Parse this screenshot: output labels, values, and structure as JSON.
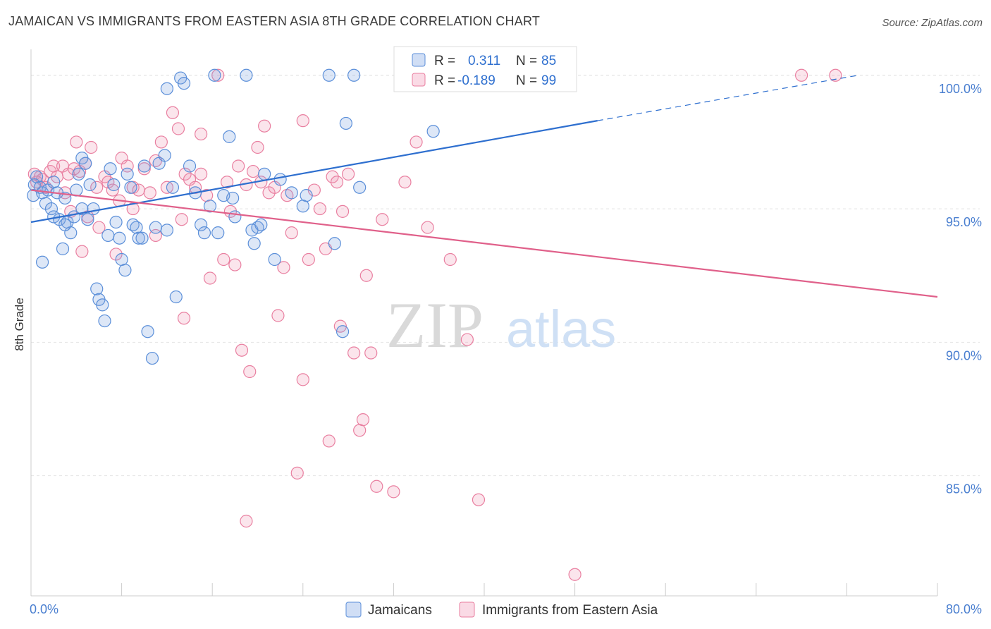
{
  "title": "JAMAICAN VS IMMIGRANTS FROM EASTERN ASIA 8TH GRADE CORRELATION CHART",
  "source": "Source: ZipAtlas.com",
  "watermark": {
    "zip": "ZIP",
    "atlas": "atlas"
  },
  "colors": {
    "blue": "#5b8fd9",
    "blue_line": "#2e6fcf",
    "pink": "#e97fa0",
    "pink_line": "#e0608a",
    "blue_fill": "rgba(120,160,225,0.25)",
    "pink_fill": "rgba(240,150,180,0.25)",
    "axis_text": "#4a7fd0"
  },
  "legend_top": {
    "rows": [
      {
        "r_label": "R =",
        "r_value": "0.311",
        "n_label": "N =",
        "n_value": "85"
      },
      {
        "r_label": "R =",
        "r_value": "-0.189",
        "n_label": "N =",
        "n_value": "99"
      }
    ]
  },
  "legend_bottom": [
    "Jamaicans",
    "Immigrants from Eastern Asia"
  ],
  "chart_data": {
    "type": "scatter",
    "xlabel": "",
    "ylabel": "8th Grade",
    "xlim": [
      0,
      80
    ],
    "ylim": [
      80.5,
      101.5
    ],
    "x_tick_labels": [
      "0.0%",
      "80.0%"
    ],
    "y_ticks": [
      85,
      90,
      95,
      100
    ],
    "y_tick_labels": [
      "85.0%",
      "90.0%",
      "95.0%",
      "100.0%"
    ],
    "grid": true,
    "series": [
      {
        "name": "Jamaicans",
        "r": 0.311,
        "n": 85,
        "trend": {
          "x0": 0,
          "y0": 94.5,
          "x1": 50,
          "y1": 98.3,
          "dash_to_x": 73,
          "dash_to_y": 100
        },
        "points": [
          [
            0.3,
            95.9
          ],
          [
            0.5,
            96.2
          ],
          [
            0.8,
            95.8
          ],
          [
            1.0,
            95.6
          ],
          [
            1.3,
            95.2
          ],
          [
            1.5,
            95.7
          ],
          [
            1.8,
            95.0
          ],
          [
            2.0,
            94.7
          ],
          [
            2.3,
            95.6
          ],
          [
            2.5,
            94.6
          ],
          [
            2.8,
            93.5
          ],
          [
            3.0,
            95.4
          ],
          [
            3.2,
            94.5
          ],
          [
            3.5,
            94.1
          ],
          [
            3.8,
            94.7
          ],
          [
            4.0,
            95.7
          ],
          [
            4.2,
            96.3
          ],
          [
            4.5,
            96.9
          ],
          [
            4.8,
            96.7
          ],
          [
            5.0,
            94.6
          ],
          [
            5.2,
            95.9
          ],
          [
            5.5,
            95.0
          ],
          [
            5.8,
            92.0
          ],
          [
            6.0,
            91.6
          ],
          [
            6.3,
            91.4
          ],
          [
            6.5,
            90.8
          ],
          [
            7.0,
            96.5
          ],
          [
            7.3,
            95.9
          ],
          [
            7.5,
            94.5
          ],
          [
            7.8,
            93.9
          ],
          [
            8.0,
            93.1
          ],
          [
            8.3,
            92.7
          ],
          [
            8.5,
            96.3
          ],
          [
            8.8,
            95.8
          ],
          [
            9.0,
            94.4
          ],
          [
            9.3,
            94.3
          ],
          [
            9.5,
            93.9
          ],
          [
            10.0,
            96.6
          ],
          [
            10.3,
            90.4
          ],
          [
            10.7,
            89.4
          ],
          [
            11.0,
            94.3
          ],
          [
            11.3,
            96.7
          ],
          [
            11.8,
            97.0
          ],
          [
            12.0,
            99.5
          ],
          [
            12.5,
            95.8
          ],
          [
            12.8,
            91.7
          ],
          [
            13.2,
            99.9
          ],
          [
            13.5,
            99.7
          ],
          [
            14.0,
            96.6
          ],
          [
            14.5,
            95.6
          ],
          [
            15.0,
            94.4
          ],
          [
            15.3,
            94.1
          ],
          [
            15.8,
            95.1
          ],
          [
            16.2,
            100.0
          ],
          [
            17.0,
            95.5
          ],
          [
            17.5,
            97.7
          ],
          [
            17.8,
            95.4
          ],
          [
            18.0,
            94.7
          ],
          [
            19.0,
            100.0
          ],
          [
            19.5,
            94.2
          ],
          [
            19.7,
            93.7
          ],
          [
            20.0,
            94.3
          ],
          [
            20.3,
            94.4
          ],
          [
            20.6,
            96.3
          ],
          [
            21.5,
            93.1
          ],
          [
            23.0,
            95.6
          ],
          [
            24.0,
            95.1
          ],
          [
            24.3,
            95.5
          ],
          [
            26.3,
            100.0
          ],
          [
            26.8,
            93.7
          ],
          [
            27.5,
            90.4
          ],
          [
            27.8,
            98.2
          ],
          [
            28.5,
            100.0
          ],
          [
            29.0,
            95.8
          ],
          [
            35.5,
            97.9
          ],
          [
            1.0,
            93.0
          ],
          [
            2.0,
            96.0
          ],
          [
            3.0,
            94.4
          ],
          [
            4.5,
            95.0
          ],
          [
            6.8,
            94.0
          ],
          [
            9.8,
            93.9
          ],
          [
            12.0,
            94.2
          ],
          [
            16.5,
            94.1
          ],
          [
            22.0,
            96.1
          ],
          [
            0.2,
            95.5
          ]
        ]
      },
      {
        "name": "Immigrants from Eastern Asia",
        "r": -0.189,
        "n": 99,
        "trend": {
          "x0": 0,
          "y0": 95.7,
          "x1": 80,
          "y1": 91.7
        },
        "points": [
          [
            0.3,
            96.3
          ],
          [
            0.5,
            96.0
          ],
          [
            0.8,
            96.2
          ],
          [
            1.0,
            96.1
          ],
          [
            1.3,
            95.8
          ],
          [
            1.7,
            96.4
          ],
          [
            2.0,
            96.6
          ],
          [
            2.3,
            96.2
          ],
          [
            2.8,
            96.6
          ],
          [
            3.0,
            95.6
          ],
          [
            3.3,
            96.3
          ],
          [
            3.5,
            94.9
          ],
          [
            4.0,
            97.5
          ],
          [
            4.3,
            96.4
          ],
          [
            4.5,
            93.4
          ],
          [
            4.8,
            96.7
          ],
          [
            5.0,
            94.7
          ],
          [
            5.3,
            97.3
          ],
          [
            5.8,
            95.8
          ],
          [
            6.0,
            94.3
          ],
          [
            6.5,
            96.2
          ],
          [
            6.8,
            96.0
          ],
          [
            7.2,
            95.7
          ],
          [
            7.5,
            93.3
          ],
          [
            7.8,
            95.3
          ],
          [
            8.0,
            96.9
          ],
          [
            8.5,
            96.6
          ],
          [
            9.0,
            95.8
          ],
          [
            9.5,
            95.7
          ],
          [
            10.0,
            96.5
          ],
          [
            10.5,
            95.6
          ],
          [
            11.0,
            94.0
          ],
          [
            11.5,
            97.5
          ],
          [
            12.0,
            95.8
          ],
          [
            12.5,
            98.6
          ],
          [
            13.0,
            98.0
          ],
          [
            13.3,
            94.6
          ],
          [
            13.6,
            96.3
          ],
          [
            14.0,
            96.1
          ],
          [
            14.5,
            95.8
          ],
          [
            15.0,
            97.8
          ],
          [
            15.5,
            95.5
          ],
          [
            15.8,
            92.4
          ],
          [
            16.5,
            100.0
          ],
          [
            17.0,
            93.1
          ],
          [
            17.3,
            96.0
          ],
          [
            17.6,
            94.9
          ],
          [
            18.0,
            92.9
          ],
          [
            18.3,
            96.6
          ],
          [
            18.6,
            89.7
          ],
          [
            19.0,
            95.9
          ],
          [
            19.3,
            88.9
          ],
          [
            19.6,
            96.4
          ],
          [
            20.0,
            97.3
          ],
          [
            20.3,
            96.0
          ],
          [
            20.6,
            98.1
          ],
          [
            21.0,
            95.6
          ],
          [
            21.5,
            95.8
          ],
          [
            21.8,
            91.0
          ],
          [
            22.3,
            92.8
          ],
          [
            22.6,
            95.5
          ],
          [
            23.0,
            94.1
          ],
          [
            23.5,
            85.1
          ],
          [
            24.0,
            98.3
          ],
          [
            24.5,
            93.1
          ],
          [
            25.0,
            95.7
          ],
          [
            25.5,
            95.0
          ],
          [
            26.0,
            93.5
          ],
          [
            26.3,
            86.3
          ],
          [
            26.6,
            96.2
          ],
          [
            27.0,
            96.0
          ],
          [
            27.3,
            90.6
          ],
          [
            28.0,
            96.3
          ],
          [
            28.5,
            89.6
          ],
          [
            29.0,
            86.7
          ],
          [
            29.3,
            87.1
          ],
          [
            29.6,
            92.5
          ],
          [
            30.0,
            89.6
          ],
          [
            30.5,
            84.6
          ],
          [
            31.0,
            94.6
          ],
          [
            32.0,
            84.4
          ],
          [
            34.0,
            97.5
          ],
          [
            35.0,
            94.3
          ],
          [
            37.0,
            93.1
          ],
          [
            38.5,
            90.1
          ],
          [
            39.5,
            84.1
          ],
          [
            42.0,
            100.0
          ],
          [
            48.0,
            81.3
          ],
          [
            68.0,
            100.0
          ],
          [
            71.0,
            100.0
          ],
          [
            13.5,
            90.9
          ],
          [
            19.0,
            83.3
          ],
          [
            24.0,
            88.6
          ],
          [
            27.5,
            94.9
          ],
          [
            33.0,
            96.0
          ],
          [
            15.0,
            96.3
          ],
          [
            11.0,
            96.8
          ],
          [
            9.0,
            95.0
          ],
          [
            3.8,
            96.5
          ]
        ]
      }
    ]
  }
}
